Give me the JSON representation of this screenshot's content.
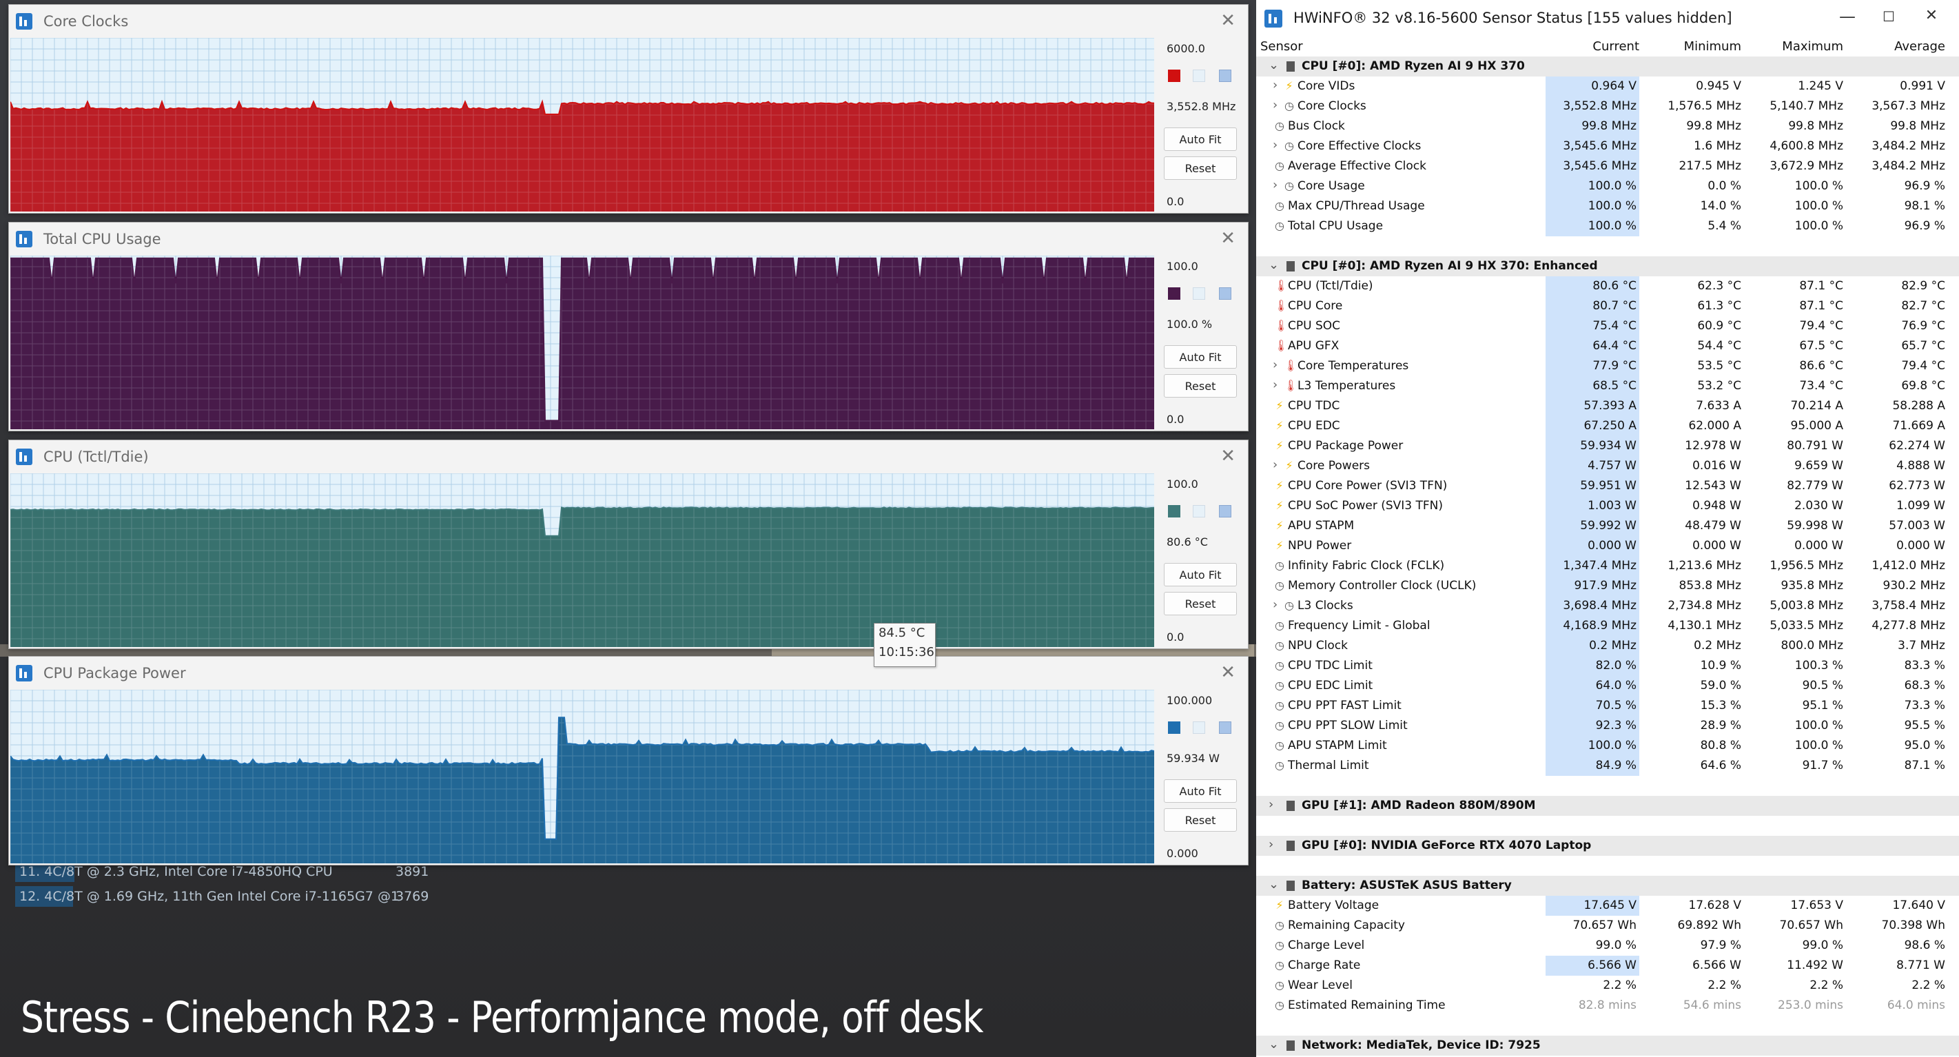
{
  "caption": "Stress - Cinebench R23 - Performjance mode, off desk",
  "cinebench_rows": [
    {
      "rank_label": "11. 4C/8T @ 2.3 GHz, Intel Core i7-4850HQ CPU",
      "score": "3891"
    },
    {
      "rank_label": "12. 4C/8T @ 1.69 GHz, 11th Gen Intel Core i7-1165G7 @1",
      "score": "3769"
    }
  ],
  "graphs": [
    {
      "title": "Core Clocks",
      "max": "6000.0",
      "current": "3,552.8 MHz",
      "min": "0.0",
      "color": "#d01010",
      "fill": "#b8121a",
      "auto_fit": "Auto Fit",
      "reset": "Reset",
      "level": 0.592,
      "dip": 0.56
    },
    {
      "title": "Total CPU Usage",
      "max": "100.0",
      "current": "100.0 %",
      "min": "0.0",
      "color": "#4a1a4a",
      "fill": "#3f0f40",
      "auto_fit": "Auto Fit",
      "reset": "Reset",
      "level": 0.985,
      "dip": 0.05
    },
    {
      "title": "CPU (Tctl/Tdie)",
      "max": "100.0",
      "current": "80.6 °C",
      "min": "0.0",
      "color": "#3f7a7a",
      "fill": "#2e6966",
      "auto_fit": "Auto Fit",
      "reset": "Reset",
      "level": 0.806,
      "dip": 0.64
    },
    {
      "title": "CPU Package Power",
      "max": "100.000",
      "current": "59.934 W",
      "min": "0.000",
      "color": "#1f6fb0",
      "fill": "#175f8f",
      "auto_fit": "Auto Fit",
      "reset": "Reset",
      "level": 0.6,
      "dip": 0.14
    }
  ],
  "tooltip": {
    "value": "84.5 °C",
    "time": "10:15:36"
  },
  "hwinfo": {
    "title": "HWiNFO® 32 v8.16-5600 Sensor Status [155 values hidden]",
    "window_buttons": {
      "minimize": "—",
      "maximize": "☐",
      "close": "✕"
    },
    "columns": {
      "sensor": "Sensor",
      "current": "Current",
      "minimum": "Minimum",
      "maximum": "Maximum",
      "average": "Average"
    },
    "rows": [
      {
        "type": "group",
        "name": "CPU [#0]: AMD Ryzen AI 9 HX 370",
        "expanded": true
      },
      {
        "type": "item",
        "icon": "bolt",
        "indent": 2,
        "expandable": true,
        "name": "Core VIDs",
        "cur": "0.964 V",
        "min": "0.945 V",
        "max": "1.245 V",
        "avg": "0.991 V",
        "hl": true
      },
      {
        "type": "item",
        "icon": "clock",
        "indent": 2,
        "expandable": true,
        "name": "Core Clocks",
        "cur": "3,552.8 MHz",
        "min": "1,576.5 MHz",
        "max": "5,140.7 MHz",
        "avg": "3,567.3 MHz",
        "hl": true
      },
      {
        "type": "item",
        "icon": "clock",
        "indent": 1,
        "name": "Bus Clock",
        "cur": "99.8 MHz",
        "min": "99.8 MHz",
        "max": "99.8 MHz",
        "avg": "99.8 MHz",
        "hl": true
      },
      {
        "type": "item",
        "icon": "clock",
        "indent": 2,
        "expandable": true,
        "name": "Core Effective Clocks",
        "cur": "3,545.6 MHz",
        "min": "1.6 MHz",
        "max": "4,600.8 MHz",
        "avg": "3,484.2 MHz",
        "hl": true
      },
      {
        "type": "item",
        "icon": "clock",
        "indent": 1,
        "name": "Average Effective Clock",
        "cur": "3,545.6 MHz",
        "min": "217.5 MHz",
        "max": "3,672.9 MHz",
        "avg": "3,484.2 MHz",
        "hl": true
      },
      {
        "type": "item",
        "icon": "clock",
        "indent": 2,
        "expandable": true,
        "name": "Core Usage",
        "cur": "100.0 %",
        "min": "0.0 %",
        "max": "100.0 %",
        "avg": "96.9 %",
        "hl": true
      },
      {
        "type": "item",
        "icon": "clock",
        "indent": 1,
        "name": "Max CPU/Thread Usage",
        "cur": "100.0 %",
        "min": "14.0 %",
        "max": "100.0 %",
        "avg": "98.1 %",
        "hl": true
      },
      {
        "type": "item",
        "icon": "clock",
        "indent": 1,
        "name": "Total CPU Usage",
        "cur": "100.0 %",
        "min": "5.4 %",
        "max": "100.0 %",
        "avg": "96.9 %",
        "hl": true
      },
      {
        "type": "spacer"
      },
      {
        "type": "group",
        "name": "CPU [#0]: AMD Ryzen AI 9 HX 370: Enhanced",
        "expanded": true
      },
      {
        "type": "item",
        "icon": "therm",
        "indent": 1,
        "name": "CPU (Tctl/Tdie)",
        "cur": "80.6 °C",
        "min": "62.3 °C",
        "max": "87.1 °C",
        "avg": "82.9 °C",
        "hl": true
      },
      {
        "type": "item",
        "icon": "therm",
        "indent": 1,
        "name": "CPU Core",
        "cur": "80.7 °C",
        "min": "61.3 °C",
        "max": "87.1 °C",
        "avg": "82.7 °C",
        "hl": true
      },
      {
        "type": "item",
        "icon": "therm",
        "indent": 1,
        "name": "CPU SOC",
        "cur": "75.4 °C",
        "min": "60.9 °C",
        "max": "79.4 °C",
        "avg": "76.9 °C",
        "hl": true
      },
      {
        "type": "item",
        "icon": "therm",
        "indent": 1,
        "name": "APU GFX",
        "cur": "64.4 °C",
        "min": "54.4 °C",
        "max": "67.5 °C",
        "avg": "65.7 °C",
        "hl": true
      },
      {
        "type": "item",
        "icon": "therm",
        "indent": 2,
        "expandable": true,
        "name": "Core Temperatures",
        "cur": "77.9 °C",
        "min": "53.5 °C",
        "max": "86.6 °C",
        "avg": "79.4 °C",
        "hl": true
      },
      {
        "type": "item",
        "icon": "therm",
        "indent": 2,
        "expandable": true,
        "name": "L3 Temperatures",
        "cur": "68.5 °C",
        "min": "53.2 °C",
        "max": "73.4 °C",
        "avg": "69.8 °C",
        "hl": true
      },
      {
        "type": "item",
        "icon": "bolt",
        "indent": 1,
        "name": "CPU TDC",
        "cur": "57.393 A",
        "min": "7.633 A",
        "max": "70.214 A",
        "avg": "58.288 A",
        "hl": true
      },
      {
        "type": "item",
        "icon": "bolt",
        "indent": 1,
        "name": "CPU EDC",
        "cur": "67.250 A",
        "min": "62.000 A",
        "max": "95.000 A",
        "avg": "71.669 A",
        "hl": true
      },
      {
        "type": "item",
        "icon": "bolt",
        "indent": 1,
        "name": "CPU Package Power",
        "cur": "59.934 W",
        "min": "12.978 W",
        "max": "80.791 W",
        "avg": "62.274 W",
        "hl": true
      },
      {
        "type": "item",
        "icon": "bolt",
        "indent": 2,
        "expandable": true,
        "name": "Core Powers",
        "cur": "4.757 W",
        "min": "0.016 W",
        "max": "9.659 W",
        "avg": "4.888 W",
        "hl": true
      },
      {
        "type": "item",
        "icon": "bolt",
        "indent": 1,
        "name": "CPU Core Power (SVI3 TFN)",
        "cur": "59.951 W",
        "min": "12.543 W",
        "max": "82.779 W",
        "avg": "62.773 W",
        "hl": true
      },
      {
        "type": "item",
        "icon": "bolt",
        "indent": 1,
        "name": "CPU SoC Power (SVI3 TFN)",
        "cur": "1.003 W",
        "min": "0.948 W",
        "max": "2.030 W",
        "avg": "1.099 W",
        "hl": true
      },
      {
        "type": "item",
        "icon": "bolt",
        "indent": 1,
        "name": "APU STAPM",
        "cur": "59.992 W",
        "min": "48.479 W",
        "max": "59.998 W",
        "avg": "57.003 W",
        "hl": true
      },
      {
        "type": "item",
        "icon": "bolt",
        "indent": 1,
        "name": "NPU Power",
        "cur": "0.000 W",
        "min": "0.000 W",
        "max": "0.000 W",
        "avg": "0.000 W",
        "hl": true
      },
      {
        "type": "item",
        "icon": "clock",
        "indent": 1,
        "name": "Infinity Fabric Clock (FCLK)",
        "cur": "1,347.4 MHz",
        "min": "1,213.6 MHz",
        "max": "1,956.5 MHz",
        "avg": "1,412.0 MHz",
        "hl": true
      },
      {
        "type": "item",
        "icon": "clock",
        "indent": 1,
        "name": "Memory Controller Clock (UCLK)",
        "cur": "917.9 MHz",
        "min": "853.8 MHz",
        "max": "935.8 MHz",
        "avg": "930.2 MHz",
        "hl": true
      },
      {
        "type": "item",
        "icon": "clock",
        "indent": 2,
        "expandable": true,
        "name": "L3 Clocks",
        "cur": "3,698.4 MHz",
        "min": "2,734.8 MHz",
        "max": "5,003.8 MHz",
        "avg": "3,758.4 MHz",
        "hl": true
      },
      {
        "type": "item",
        "icon": "clock",
        "indent": 1,
        "name": "Frequency Limit - Global",
        "cur": "4,168.9 MHz",
        "min": "4,130.1 MHz",
        "max": "5,033.5 MHz",
        "avg": "4,277.8 MHz",
        "hl": true
      },
      {
        "type": "item",
        "icon": "clock",
        "indent": 1,
        "name": "NPU Clock",
        "cur": "0.2 MHz",
        "min": "0.2 MHz",
        "max": "800.0 MHz",
        "avg": "3.7 MHz",
        "hl": true
      },
      {
        "type": "item",
        "icon": "clock",
        "indent": 1,
        "name": "CPU TDC Limit",
        "cur": "82.0 %",
        "min": "10.9 %",
        "max": "100.3 %",
        "avg": "83.3 %",
        "hl": true
      },
      {
        "type": "item",
        "icon": "clock",
        "indent": 1,
        "name": "CPU EDC Limit",
        "cur": "64.0 %",
        "min": "59.0 %",
        "max": "90.5 %",
        "avg": "68.3 %",
        "hl": true
      },
      {
        "type": "item",
        "icon": "clock",
        "indent": 1,
        "name": "CPU PPT FAST Limit",
        "cur": "70.5 %",
        "min": "15.3 %",
        "max": "95.1 %",
        "avg": "73.3 %",
        "hl": true
      },
      {
        "type": "item",
        "icon": "clock",
        "indent": 1,
        "name": "CPU PPT SLOW Limit",
        "cur": "92.3 %",
        "min": "28.9 %",
        "max": "100.0 %",
        "avg": "95.5 %",
        "hl": true
      },
      {
        "type": "item",
        "icon": "clock",
        "indent": 1,
        "name": "APU STAPM Limit",
        "cur": "100.0 %",
        "min": "80.8 %",
        "max": "100.0 %",
        "avg": "95.0 %",
        "hl": true
      },
      {
        "type": "item",
        "icon": "clock",
        "indent": 1,
        "name": "Thermal Limit",
        "cur": "84.9 %",
        "min": "64.6 %",
        "max": "91.7 %",
        "avg": "87.1 %",
        "hl": true
      },
      {
        "type": "spacer"
      },
      {
        "type": "group",
        "name": "GPU [#1]: AMD Radeon 880M/890M",
        "expanded": false
      },
      {
        "type": "spacer"
      },
      {
        "type": "group",
        "name": "GPU [#0]: NVIDIA GeForce RTX 4070 Laptop",
        "expanded": false
      },
      {
        "type": "spacer"
      },
      {
        "type": "group",
        "name": "Battery: ASUSTeK ASUS Battery",
        "expanded": true
      },
      {
        "type": "item",
        "icon": "bolt",
        "indent": 1,
        "name": "Battery Voltage",
        "cur": "17.645 V",
        "min": "17.628 V",
        "max": "17.653 V",
        "avg": "17.640 V",
        "hl": true
      },
      {
        "type": "item",
        "icon": "clock",
        "indent": 1,
        "name": "Remaining Capacity",
        "cur": "70.657 Wh",
        "min": "69.892 Wh",
        "max": "70.657 Wh",
        "avg": "70.398 Wh",
        "hl": false
      },
      {
        "type": "item",
        "icon": "clock",
        "indent": 1,
        "name": "Charge Level",
        "cur": "99.0 %",
        "min": "97.9 %",
        "max": "99.0 %",
        "avg": "98.6 %",
        "hl": false
      },
      {
        "type": "item",
        "icon": "clock",
        "indent": 1,
        "name": "Charge Rate",
        "cur": "6.566 W",
        "min": "6.566 W",
        "max": "11.492 W",
        "avg": "8.771 W",
        "hl": true
      },
      {
        "type": "item",
        "icon": "clock",
        "indent": 1,
        "name": "Wear Level",
        "cur": "2.2 %",
        "min": "2.2 %",
        "max": "2.2 %",
        "avg": "2.2 %",
        "hl": false
      },
      {
        "type": "item",
        "icon": "clock",
        "indent": 1,
        "name": "Estimated Remaining Time",
        "cur": "82.8 mins",
        "min": "54.6 mins",
        "max": "253.0 mins",
        "avg": "64.0 mins",
        "hl": false,
        "dim": true
      },
      {
        "type": "spacer"
      },
      {
        "type": "group",
        "name": "Network: MediaTek, Device ID: 7925",
        "expanded": true
      }
    ]
  }
}
